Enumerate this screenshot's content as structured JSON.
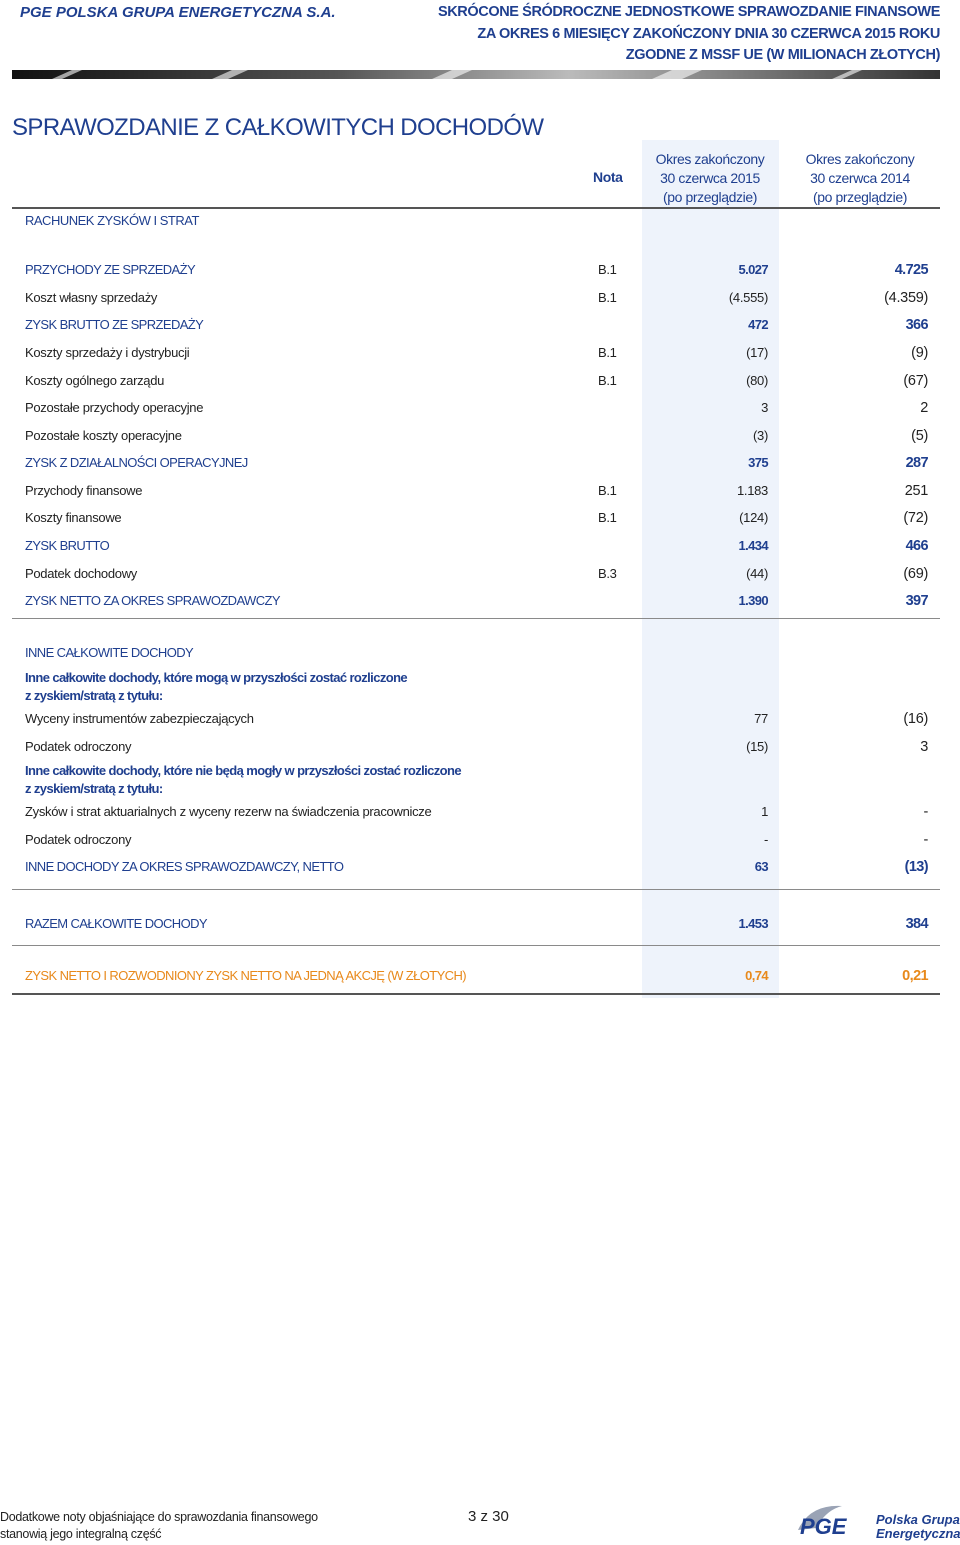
{
  "header": {
    "company": "PGE POLSKA GRUPA ENERGETYCZNA S.A.",
    "title_lines": [
      "SKRÓCONE ŚRÓDROCZNE JEDNOSTKOWE SPRAWOZDANIE FINANSOWE",
      "ZA OKRES 6 MIESIĘCY ZAKOŃCZONY DNIA 30 CZERWCA 2015 ROKU",
      "ZGODNE Z MSSF UE (W MILIONACH ZŁOTYCH)"
    ]
  },
  "section_title": "SPRAWOZDANIE Z CAŁKOWITYCH DOCHODÓW",
  "table": {
    "columns": {
      "label": "RACHUNEK ZYSKÓW I STRAT",
      "note": "Nota",
      "current": [
        "Okres zakończony",
        "30 czerwca 2015",
        "(po przeglądzie)"
      ],
      "previous": [
        "Okres zakończony",
        "30 czerwca 2014",
        "(po przeglądzie)"
      ]
    },
    "rows": [
      {
        "label": "PRZYCHODY ZE SPRZEDAŻY",
        "note": "B.1",
        "values": [
          "5.027",
          "4.725"
        ]
      },
      {
        "label": "Koszt własny sprzedaży",
        "note": "B.1",
        "values": [
          "(4.555)",
          "(4.359)"
        ]
      },
      {
        "label": "ZYSK BRUTTO ZE SPRZEDAŻY",
        "values": [
          "472",
          "366"
        ]
      },
      {
        "label": "Koszty sprzedaży i dystrybucji",
        "note": "B.1",
        "values": [
          "(17)",
          "(9)"
        ]
      },
      {
        "label": "Koszty ogólnego zarządu",
        "note": "B.1",
        "values": [
          "(80)",
          "(67)"
        ]
      },
      {
        "label": "Pozostałe przychody operacyjne",
        "values": [
          "3",
          "2"
        ]
      },
      {
        "label": "Pozostałe koszty operacyjne",
        "values": [
          "(3)",
          "(5)"
        ]
      },
      {
        "label": "ZYSK Z DZIAŁALNOŚCI OPERACYJNEJ",
        "values": [
          "375",
          "287"
        ]
      },
      {
        "label": "Przychody finansowe",
        "note": "B.1",
        "values": [
          "1.183",
          "251"
        ]
      },
      {
        "label": "Koszty finansowe",
        "note": "B.1",
        "values": [
          "(124)",
          "(72)"
        ]
      },
      {
        "label": "ZYSK BRUTTO",
        "values": [
          "1.434",
          "466"
        ]
      },
      {
        "label": "Podatek dochodowy",
        "note": "B.3",
        "values": [
          "(44)",
          "(69)"
        ]
      },
      {
        "label": "ZYSK NETTO ZA OKRES SPRAWOZDAWCZY",
        "values": [
          "1.390",
          "397"
        ]
      },
      {
        "label": "INNE CAŁKOWITE DOCHODY"
      },
      {
        "lines": [
          "Inne całkowite dochody, które mogą w przyszłości zostać rozliczone",
          "z zyskiem/stratą z tytułu:"
        ]
      },
      {
        "label": "Wyceny instrumentów zabezpieczających",
        "values": [
          "77",
          "(16)"
        ]
      },
      {
        "label": "Podatek odroczony",
        "values": [
          "(15)",
          "3"
        ]
      },
      {
        "lines": [
          "Inne całkowite dochody, które nie będą mogły w przyszłości zostać rozliczone",
          "z zyskiem/stratą z tytułu:"
        ]
      },
      {
        "label": "Zysków i strat aktuarialnych z wyceny rezerw na świadczenia pracownicze",
        "values": [
          "1",
          "-"
        ]
      },
      {
        "label": "Podatek odroczony",
        "values": [
          "-",
          "-"
        ]
      },
      {
        "label": "INNE DOCHODY ZA OKRES SPRAWOZDAWCZY, NETTO",
        "values": [
          "63",
          "(13)"
        ]
      },
      {
        "label": "RAZEM CAŁKOWITE DOCHODY",
        "values": [
          "1.453",
          "384"
        ]
      },
      {
        "label": "ZYSK NETTO I ROZWODNIONY ZYSK NETTO NA JEDNĄ AKCJĘ (W ZŁOTYCH)",
        "values": [
          "0,74",
          "0,21"
        ]
      }
    ]
  },
  "footer": {
    "note_lines": [
      "Dodatkowe noty objaśniające do sprawozdania finansowego",
      "stanowią jego integralną część"
    ],
    "page": "3 z 30",
    "logo": {
      "mark": "PGE",
      "name_lines": [
        "Polska Grupa",
        "Energetyczna"
      ]
    }
  }
}
